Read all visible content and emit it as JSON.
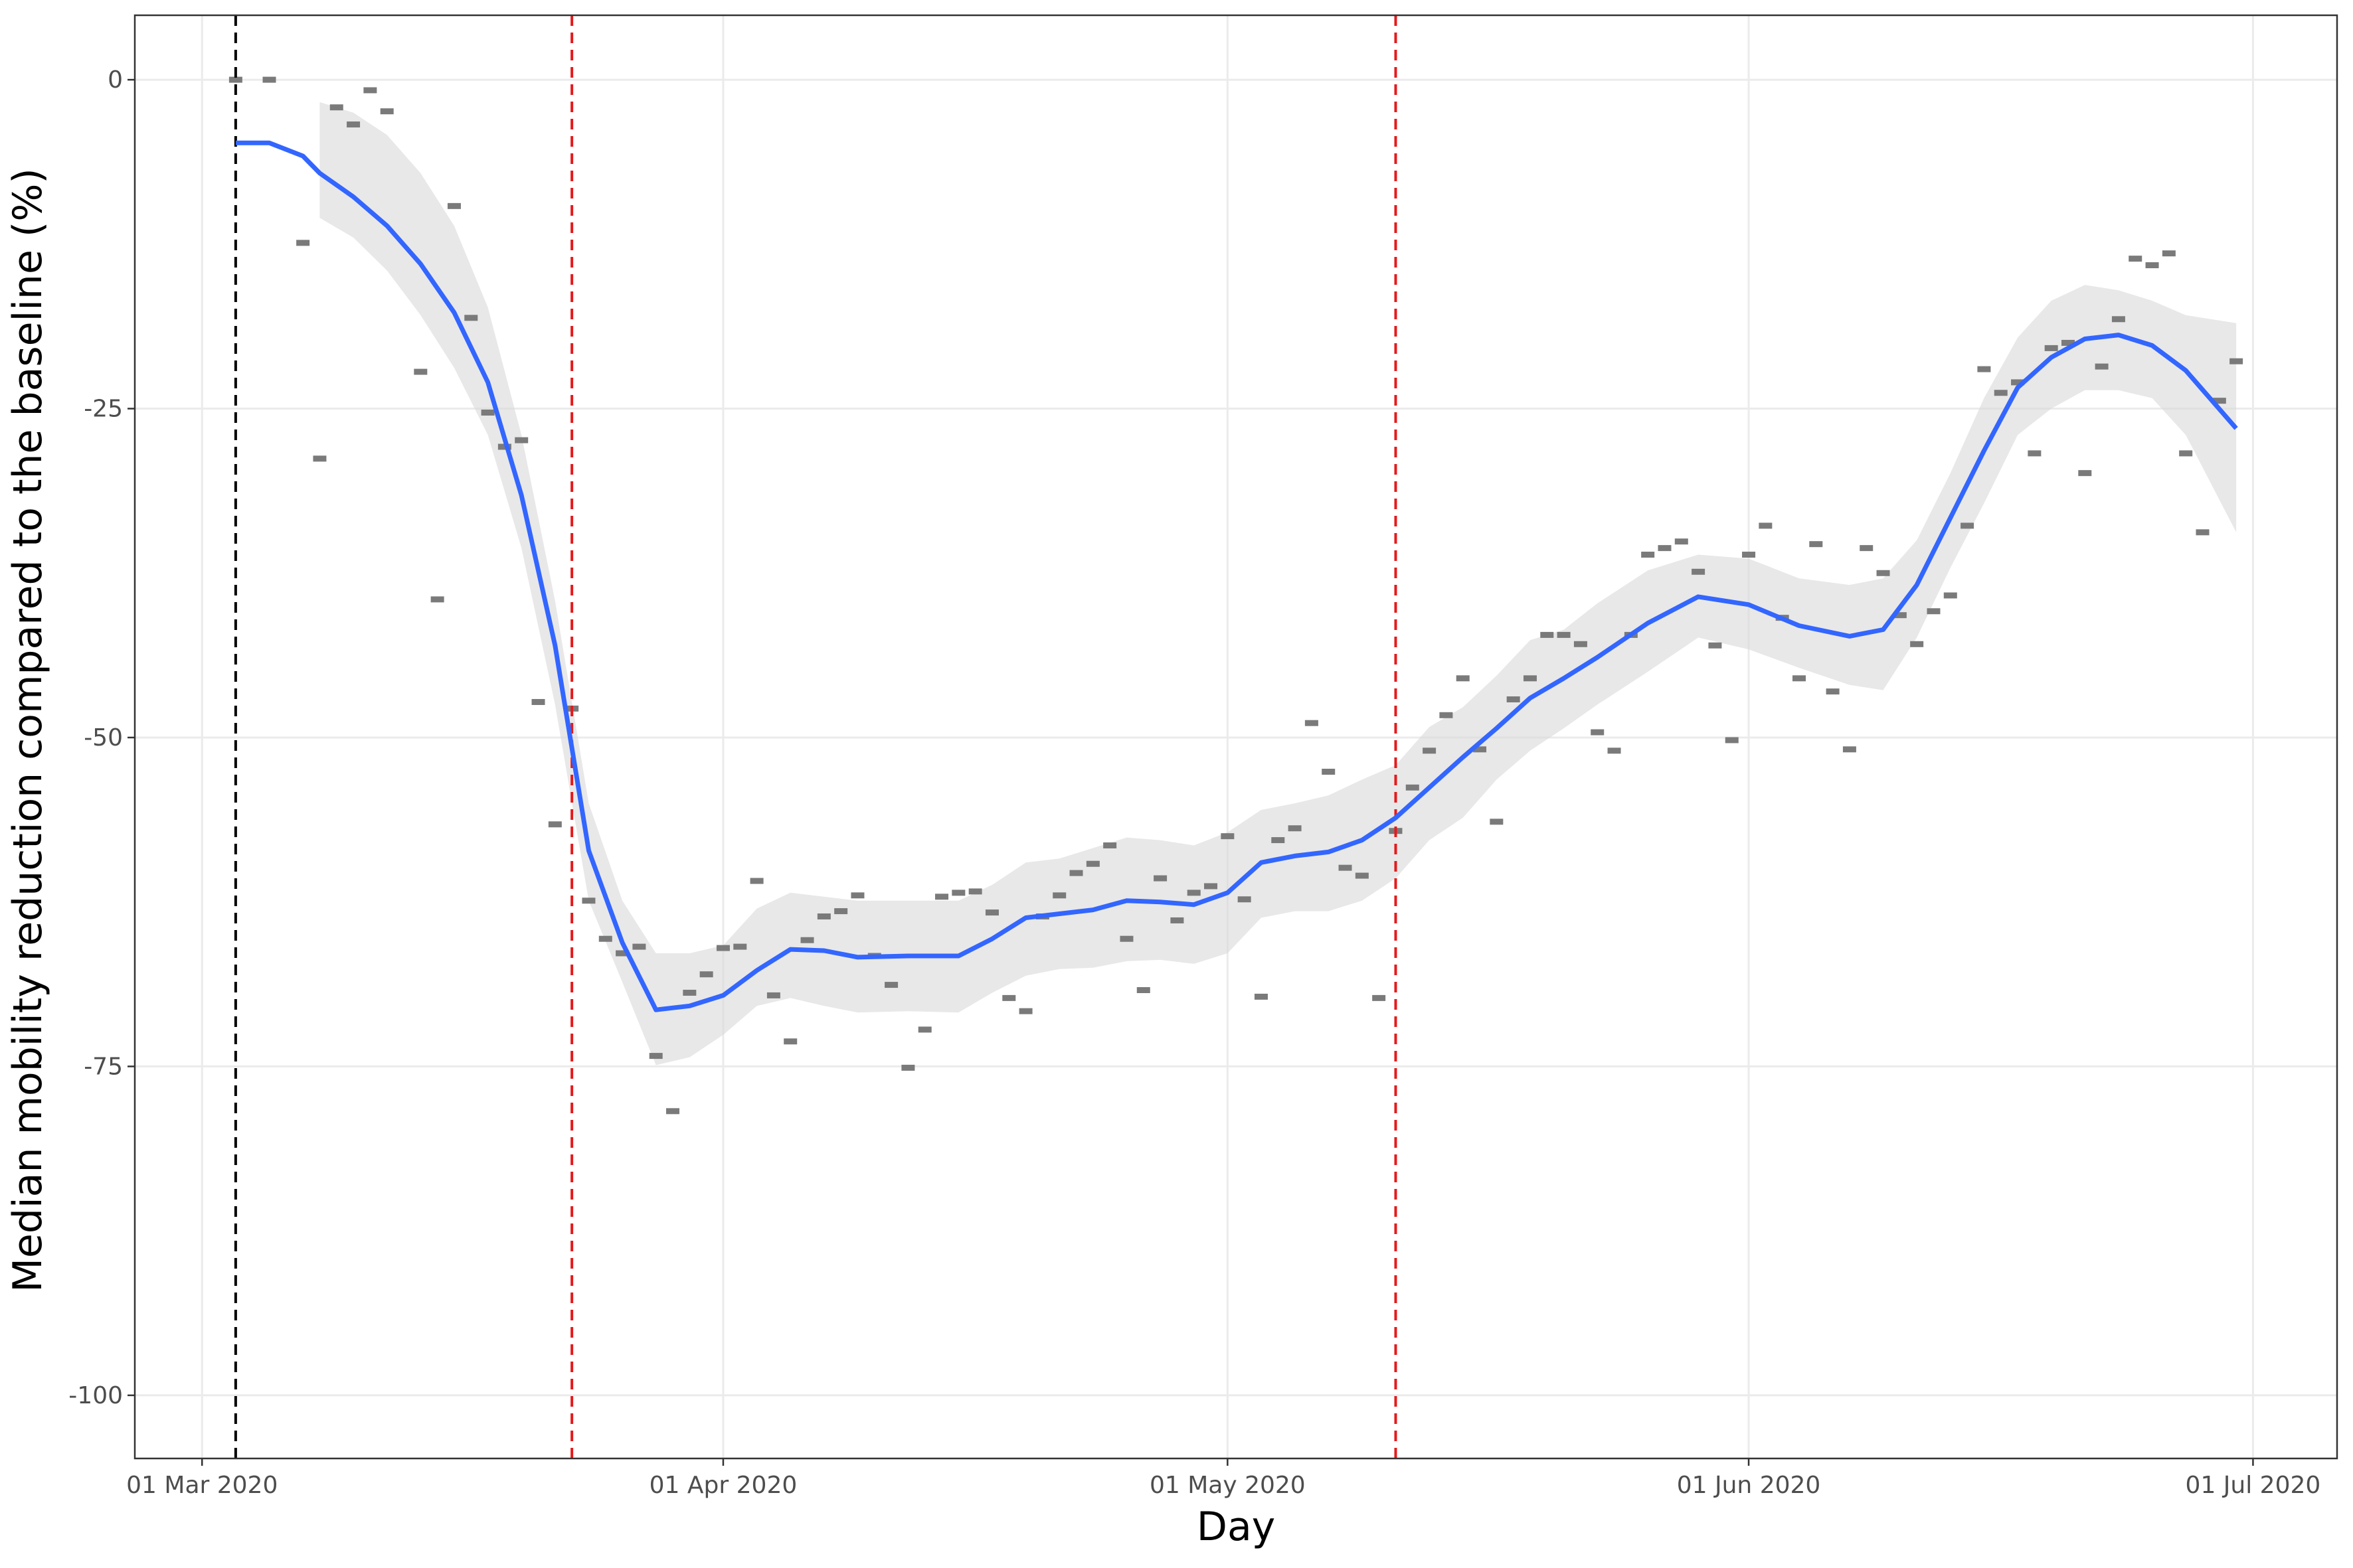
{
  "chart_data": {
    "type": "scatter-smooth",
    "x_label": "Day",
    "y_label": "Median mobility reduction compared to the baseline (%)",
    "xlim": [
      "2020-02-26",
      "2020-07-06"
    ],
    "xticks": [
      {
        "value": "2020-03-01",
        "label": "01 Mar 2020"
      },
      {
        "value": "2020-04-01",
        "label": "01 Apr 2020"
      },
      {
        "value": "2020-05-01",
        "label": "01 May 2020"
      },
      {
        "value": "2020-06-01",
        "label": "01 Jun 2020"
      },
      {
        "value": "2020-07-01",
        "label": "01 Jul 2020"
      }
    ],
    "ylim": [
      -104.8,
      4.9
    ],
    "yticks": [
      0,
      -25,
      -50,
      -75,
      -100
    ],
    "grid": true,
    "vlines": [
      {
        "x": "2020-03-03",
        "color": "#000000"
      },
      {
        "x": "2020-03-23",
        "color": "#e41a1c"
      },
      {
        "x": "2020-05-11",
        "color": "#e41a1c"
      }
    ],
    "points": {
      "color": "#7a7a7a",
      "x": [
        "2020-03-03",
        "2020-03-05",
        "2020-03-07",
        "2020-03-08",
        "2020-03-09",
        "2020-03-10",
        "2020-03-11",
        "2020-03-12",
        "2020-03-14",
        "2020-03-15",
        "2020-03-16",
        "2020-03-17",
        "2020-03-18",
        "2020-03-19",
        "2020-03-20",
        "2020-03-21",
        "2020-03-22",
        "2020-03-23",
        "2020-03-24",
        "2020-03-25",
        "2020-03-26",
        "2020-03-27",
        "2020-03-28",
        "2020-03-29",
        "2020-03-30",
        "2020-03-31",
        "2020-04-01",
        "2020-04-02",
        "2020-04-03",
        "2020-04-04",
        "2020-04-05",
        "2020-04-06",
        "2020-04-07",
        "2020-04-08",
        "2020-04-09",
        "2020-04-10",
        "2020-04-11",
        "2020-04-12",
        "2020-04-13",
        "2020-04-14",
        "2020-04-15",
        "2020-04-16",
        "2020-04-17",
        "2020-04-18",
        "2020-04-19",
        "2020-04-20",
        "2020-04-21",
        "2020-04-22",
        "2020-04-23",
        "2020-04-24",
        "2020-04-25",
        "2020-04-26",
        "2020-04-27",
        "2020-04-28",
        "2020-04-29",
        "2020-04-30",
        "2020-05-01",
        "2020-05-02",
        "2020-05-03",
        "2020-05-04",
        "2020-05-05",
        "2020-05-06",
        "2020-05-07",
        "2020-05-08",
        "2020-05-09",
        "2020-05-10",
        "2020-05-11",
        "2020-05-12",
        "2020-05-13",
        "2020-05-14",
        "2020-05-15",
        "2020-05-16",
        "2020-05-17",
        "2020-05-18",
        "2020-05-19",
        "2020-05-20",
        "2020-05-21",
        "2020-05-22",
        "2020-05-23",
        "2020-05-24",
        "2020-05-25",
        "2020-05-26",
        "2020-05-27",
        "2020-05-28",
        "2020-05-29",
        "2020-05-30",
        "2020-05-31",
        "2020-06-01",
        "2020-06-02",
        "2020-06-03",
        "2020-06-04",
        "2020-06-05",
        "2020-06-06",
        "2020-06-07",
        "2020-06-08",
        "2020-06-09",
        "2020-06-10",
        "2020-06-11",
        "2020-06-12",
        "2020-06-13",
        "2020-06-14",
        "2020-06-15",
        "2020-06-16",
        "2020-06-17",
        "2020-06-18",
        "2020-06-19",
        "2020-06-20",
        "2020-06-21",
        "2020-06-22",
        "2020-06-23",
        "2020-06-24",
        "2020-06-25",
        "2020-06-26",
        "2020-06-27",
        "2020-06-28",
        "2020-06-29",
        "2020-06-30"
      ],
      "values": [
        0,
        0,
        -12.4,
        -28.8,
        -2.1,
        -3.4,
        -0.8,
        -2.4,
        -22.2,
        -39.5,
        -9.6,
        -18.1,
        -25.3,
        -27.9,
        -27.4,
        -47.3,
        -56.6,
        -47.8,
        -62.4,
        -65.3,
        -66.4,
        -65.9,
        -74.2,
        -78.4,
        -69.4,
        -68.0,
        -66.0,
        -65.9,
        -60.9,
        -69.6,
        -73.1,
        -65.4,
        -63.6,
        -63.2,
        -62.0,
        -66.6,
        -68.8,
        -75.1,
        -72.2,
        -62.1,
        -61.8,
        -61.7,
        -63.3,
        -69.8,
        -70.8,
        -63.6,
        -62.0,
        -60.3,
        -59.6,
        -58.2,
        -65.3,
        -69.2,
        -60.7,
        -63.9,
        -61.8,
        -61.3,
        -57.5,
        -62.3,
        -69.7,
        -57.8,
        -56.9,
        -48.9,
        -52.6,
        -59.9,
        -60.5,
        -69.8,
        -57.1,
        -53.8,
        -51.0,
        -48.3,
        -45.5,
        -50.9,
        -56.4,
        -47.1,
        -45.5,
        -42.2,
        -42.2,
        -42.9,
        -49.6,
        -51.0,
        -42.2,
        -36.1,
        -35.6,
        -35.1,
        -37.4,
        -43.0,
        -50.2,
        -36.1,
        -33.9,
        -40.9,
        -45.5,
        -35.3,
        -46.5,
        -50.9,
        -35.6,
        -37.5,
        -40.7,
        -42.9,
        -40.4,
        -39.2,
        -33.9,
        -22.0,
        -23.8,
        -23.0,
        -28.4,
        -20.4,
        -20.0,
        -29.9,
        -21.8,
        -18.2,
        -13.6,
        -14.1,
        -13.2,
        -28.4,
        -34.4,
        -24.4,
        -21.4
      ]
    },
    "smooth": {
      "color": "#3366ff",
      "band_color": "#d9d9d9",
      "x": [
        "2020-03-03",
        "2020-03-05",
        "2020-03-07",
        "2020-03-08",
        "2020-03-10",
        "2020-03-12",
        "2020-03-14",
        "2020-03-16",
        "2020-03-18",
        "2020-03-20",
        "2020-03-22",
        "2020-03-24",
        "2020-03-26",
        "2020-03-28",
        "2020-03-30",
        "2020-04-01",
        "2020-04-03",
        "2020-04-05",
        "2020-04-07",
        "2020-04-09",
        "2020-04-12",
        "2020-04-15",
        "2020-04-17",
        "2020-04-19",
        "2020-04-21",
        "2020-04-23",
        "2020-04-25",
        "2020-04-27",
        "2020-04-29",
        "2020-05-01",
        "2020-05-03",
        "2020-05-05",
        "2020-05-07",
        "2020-05-09",
        "2020-05-11",
        "2020-05-13",
        "2020-05-15",
        "2020-05-17",
        "2020-05-19",
        "2020-05-21",
        "2020-05-23",
        "2020-05-26",
        "2020-05-29",
        "2020-06-01",
        "2020-06-04",
        "2020-06-07",
        "2020-06-09",
        "2020-06-11",
        "2020-06-13",
        "2020-06-15",
        "2020-06-17",
        "2020-06-19",
        "2020-06-21",
        "2020-06-23",
        "2020-06-25",
        "2020-06-27",
        "2020-06-30"
      ],
      "values": [
        -4.8,
        -4.8,
        -5.8,
        -7.1,
        -8.9,
        -11.1,
        -14.0,
        -17.7,
        -23.0,
        -31.6,
        -43.0,
        -58.6,
        -65.6,
        -70.7,
        -70.4,
        -69.6,
        -67.7,
        -66.1,
        -66.2,
        -66.7,
        -66.6,
        -66.6,
        -65.3,
        -63.7,
        -63.4,
        -63.1,
        -62.4,
        -62.5,
        -62.7,
        -61.8,
        -59.5,
        -59.0,
        -58.7,
        -57.8,
        -56.1,
        -53.8,
        -51.5,
        -49.3,
        -47.0,
        -45.5,
        -43.9,
        -41.3,
        -39.3,
        -39.9,
        -41.5,
        -42.3,
        -41.8,
        -38.4,
        -33.3,
        -28.2,
        -23.4,
        -21.1,
        -19.7,
        -19.4,
        -20.2,
        -22.1,
        -26.5
      ],
      "upper": [
        null,
        null,
        null,
        -1.7,
        -2.5,
        -4.2,
        -7.1,
        -11.1,
        -17.3,
        -27.0,
        -39.6,
        -55.0,
        -62.4,
        -66.4,
        -66.4,
        -65.8,
        -63.0,
        -61.8,
        -62.1,
        -62.4,
        -62.4,
        -62.4,
        -61.2,
        -59.5,
        -59.2,
        -58.4,
        -57.6,
        -57.8,
        -58.2,
        -57.2,
        -55.5,
        -55.0,
        -54.4,
        -53.2,
        -52.1,
        -49.2,
        -47.7,
        -45.3,
        -42.6,
        -41.8,
        -39.8,
        -37.3,
        -36.1,
        -36.4,
        -37.9,
        -38.4,
        -37.9,
        -35.0,
        -29.9,
        -24.2,
        -19.6,
        -16.8,
        -15.6,
        -16.0,
        -16.8,
        -17.9,
        -18.5
      ],
      "lower": [
        null,
        null,
        null,
        -10.5,
        -12.0,
        -14.5,
        -17.9,
        -21.9,
        -27.0,
        -35.6,
        -47.5,
        -62.4,
        -68.6,
        -74.9,
        -74.3,
        -72.6,
        -70.4,
        -69.8,
        -70.4,
        -70.9,
        -70.8,
        -70.9,
        -69.4,
        -68.1,
        -67.6,
        -67.5,
        -67.0,
        -66.9,
        -67.2,
        -66.4,
        -63.7,
        -63.2,
        -63.2,
        -62.4,
        -60.7,
        -57.8,
        -56.1,
        -53.2,
        -51.0,
        -49.3,
        -47.5,
        -45.0,
        -42.4,
        -43.3,
        -44.7,
        -46.0,
        -46.4,
        -42.4,
        -37.1,
        -32.2,
        -27.0,
        -25.0,
        -23.6,
        -23.6,
        -24.2,
        -27.0,
        -34.4
      ]
    }
  }
}
